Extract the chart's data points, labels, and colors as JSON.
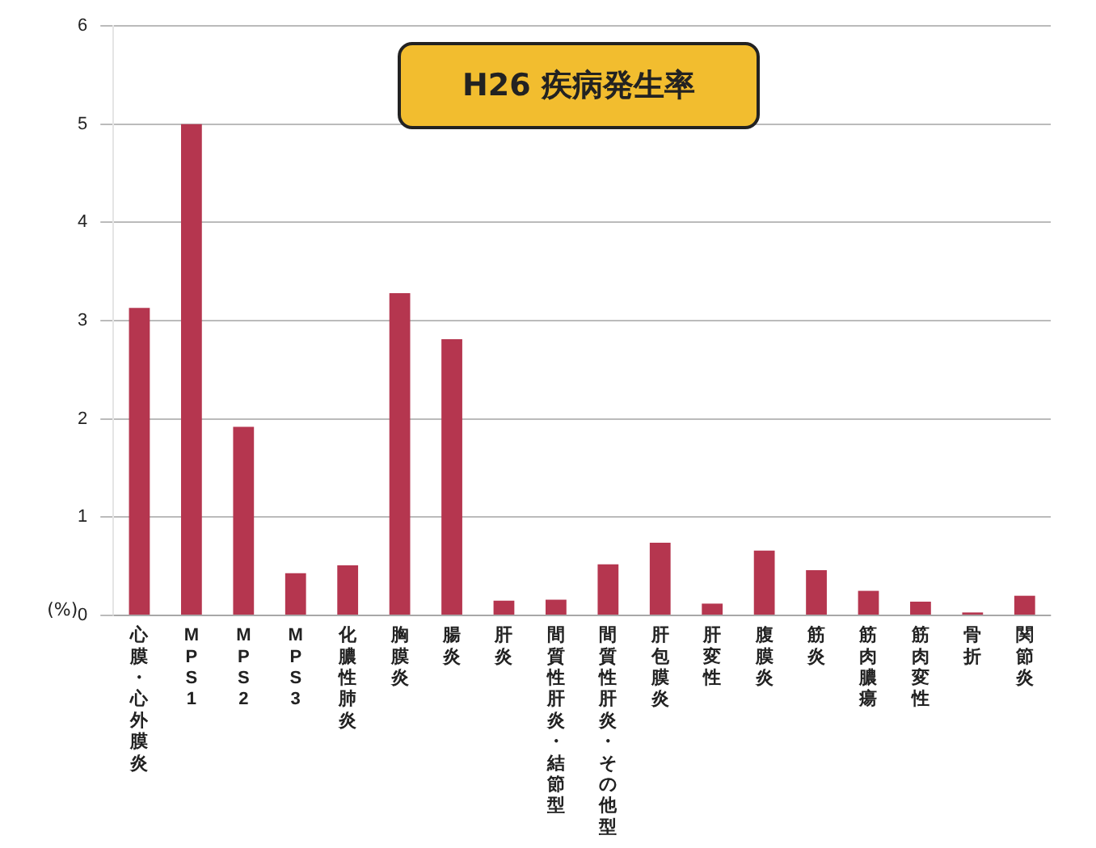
{
  "chart_data": {
    "type": "bar",
    "title": "H26 疾病発生率",
    "ylabel": "(%)",
    "categories": [
      "心膜・心外膜炎",
      "MPS1",
      "MPS2",
      "MPS3",
      "化膿性肺炎",
      "胸膜炎",
      "腸炎",
      "肝炎",
      "間質性肝炎・結節型",
      "間質性肝炎・その他型",
      "肝包膜炎",
      "肝変性",
      "腹膜炎",
      "筋炎",
      "筋肉膿瘍",
      "筋肉変性",
      "骨折",
      "関節炎"
    ],
    "values": [
      3.13,
      5.0,
      1.92,
      0.43,
      0.51,
      3.28,
      2.81,
      0.15,
      0.16,
      0.52,
      0.74,
      0.12,
      0.66,
      0.46,
      0.25,
      0.14,
      0.03,
      0.2
    ],
    "color": "#b5364f",
    "ylim": [
      0,
      6
    ],
    "yticks": [
      0,
      1,
      2,
      3,
      4,
      5,
      6
    ],
    "grid": "y"
  }
}
